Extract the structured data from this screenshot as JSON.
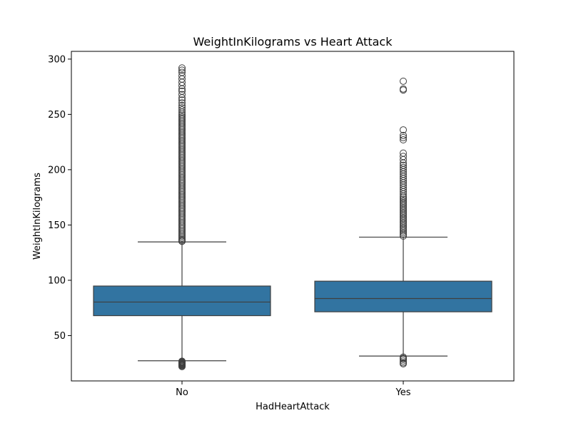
{
  "chart_data": {
    "type": "box",
    "title": "WeightInKilograms vs Heart Attack",
    "xlabel": "HadHeartAttack",
    "ylabel": "WeightInKilograms",
    "categories": [
      "No",
      "Yes"
    ],
    "ylim": [
      9,
      307
    ],
    "yticks": [
      50,
      100,
      150,
      200,
      250,
      300
    ],
    "grid": false,
    "box_color": "#3274a1",
    "line_color": "#3f3f3f",
    "boxes": [
      {
        "category": "No",
        "whisker_low": 27.2,
        "q1": 68.0,
        "median": 80.3,
        "q3": 94.8,
        "whisker_high": 134.7,
        "outliers": [
          22.0,
          22.7,
          23.1,
          23.6,
          24.0,
          24.5,
          25.0,
          25.4,
          25.9,
          26.3,
          26.8,
          135.2,
          136.1,
          137.0,
          138.3,
          139.7,
          141.0,
          142.4,
          143.8,
          145.2,
          146.6,
          148.0,
          149.4,
          150.8,
          152.2,
          153.6,
          155.0,
          156.4,
          157.8,
          159.2,
          160.6,
          162.0,
          163.4,
          164.8,
          166.2,
          167.6,
          169.0,
          170.4,
          171.8,
          173.2,
          174.6,
          176.0,
          177.4,
          178.8,
          180.2,
          181.6,
          183.0,
          184.4,
          185.8,
          187.2,
          188.6,
          190.0,
          191.4,
          192.8,
          194.2,
          195.6,
          197.0,
          198.4,
          199.8,
          201.2,
          202.6,
          204.0,
          205.4,
          206.8,
          208.2,
          209.6,
          211.0,
          212.4,
          213.8,
          215.2,
          216.6,
          218.0,
          219.4,
          220.8,
          222.2,
          223.6,
          225.0,
          226.4,
          227.8,
          229.2,
          230.6,
          232.0,
          233.4,
          234.8,
          236.2,
          237.6,
          239.0,
          240.4,
          241.8,
          243.2,
          244.6,
          246.0,
          247.4,
          248.8,
          250.2,
          252.0,
          254.0,
          256.0,
          258.0,
          260.5,
          263.0,
          265.0,
          268.0,
          271.0,
          273.0,
          276.0,
          279.0,
          282.0,
          285.0,
          288.0,
          290.0,
          292.0
        ]
      },
      {
        "category": "Yes",
        "whisker_low": 31.5,
        "q1": 71.5,
        "median": 83.5,
        "q3": 99.2,
        "whisker_high": 139.0,
        "outliers": [
          24.5,
          25.5,
          27.0,
          28.5,
          29.5,
          30.5,
          140.0,
          141.5,
          143.0,
          144.5,
          146.0,
          147.5,
          149.0,
          150.5,
          152.0,
          153.5,
          155.0,
          156.5,
          158.0,
          159.5,
          161.0,
          162.5,
          164.0,
          165.5,
          167.0,
          168.5,
          170.0,
          171.5,
          173.0,
          174.5,
          176.0,
          178.0,
          180.0,
          182.0,
          184.0,
          186.0,
          188.0,
          190.0,
          192.0,
          194.0,
          196.0,
          198.0,
          200.0,
          202.0,
          204.0,
          206.0,
          209.0,
          212.0,
          215.0,
          227.0,
          229.0,
          231.0,
          236.0,
          272.0,
          273.0,
          280.0
        ]
      }
    ]
  }
}
